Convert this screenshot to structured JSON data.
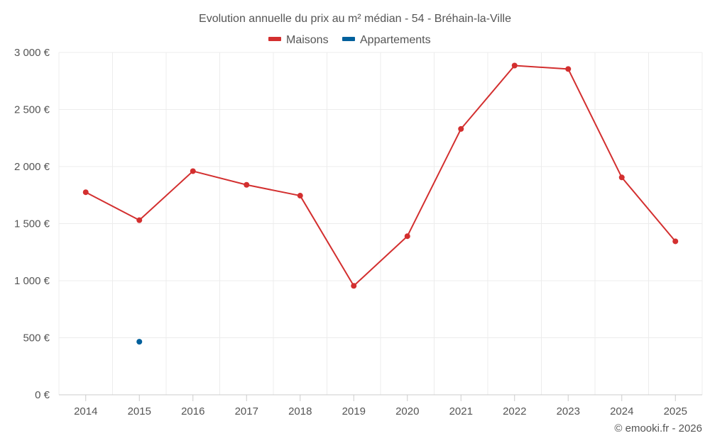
{
  "chart_data": {
    "type": "line",
    "title": "Evolution annuelle du prix au m² médian - 54 - Bréhain-la-Ville",
    "categories": [
      "2014",
      "2015",
      "2016",
      "2017",
      "2018",
      "2019",
      "2020",
      "2021",
      "2022",
      "2023",
      "2024",
      "2025"
    ],
    "series": [
      {
        "name": "Maisons",
        "color": "#d32f2f",
        "values": [
          1775,
          1530,
          1960,
          1840,
          1745,
          955,
          1390,
          2330,
          2885,
          2855,
          1905,
          1345
        ]
      },
      {
        "name": "Appartements",
        "color": "#00609c",
        "values": [
          null,
          465,
          null,
          null,
          null,
          null,
          null,
          null,
          null,
          null,
          null,
          null
        ]
      }
    ],
    "ylim": [
      0,
      3000
    ],
    "yticks": [
      0,
      500,
      1000,
      1500,
      2000,
      2500,
      3000
    ],
    "ytick_labels": [
      "0 €",
      "500 €",
      "1 000 €",
      "1 500 €",
      "2 000 €",
      "2 500 €",
      "3 000 €"
    ],
    "xlabel": "",
    "ylabel": "",
    "grid": true,
    "legend_position": "top-center"
  },
  "credit": "© emooki.fr - 2026"
}
